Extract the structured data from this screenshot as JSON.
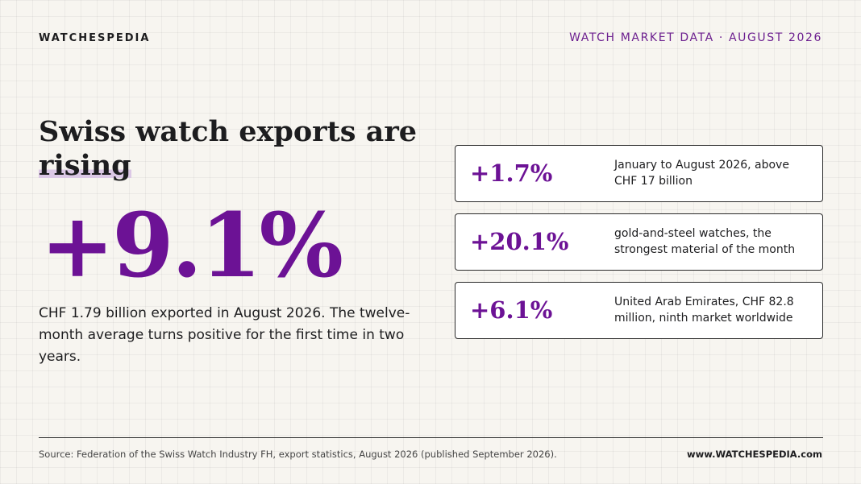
{
  "header": {
    "brand": "WATCHESPEDIA",
    "tagline": "WATCH MARKET DATA · AUGUST 2026"
  },
  "main": {
    "headline_lead": "Swiss watch exports are",
    "headline_highlight": "rising",
    "big_figure": "+9.1%",
    "summary": "CHF 1.79 billion exported in August 2026. The twelve-month average turns positive for the first time in two years."
  },
  "cards": [
    {
      "value": "+1.7%",
      "description": "January to August 2026, above CHF 17 billion"
    },
    {
      "value": "+20.1%",
      "description": "gold-and-steel watches, the strongest material of the month"
    },
    {
      "value": "+6.1%",
      "description": "United Arab Emirates, CHF 82.8 million, ninth market worldwide"
    }
  ],
  "footer": {
    "source": "Source: Federation of the Swiss Watch Industry FH, export statistics, August 2026 (published September 2026).",
    "website": "www.WATCHESPEDIA.com"
  },
  "colors": {
    "accent": "#6c1295",
    "highlight": "#dcc8e6",
    "background": "#f7f5f0"
  }
}
